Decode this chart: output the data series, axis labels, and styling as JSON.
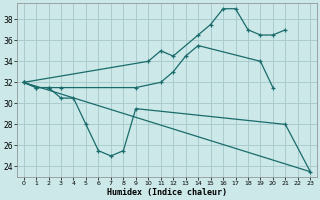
{
  "xlabel": "Humidex (Indice chaleur)",
  "bg_color": "#cce8e8",
  "grid_color": "#aacccc",
  "line_color": "#1a6b6b",
  "xlim": [
    -0.5,
    23.5
  ],
  "ylim": [
    23.0,
    39.5
  ],
  "yticks": [
    24,
    26,
    28,
    30,
    32,
    34,
    36,
    38
  ],
  "xticks": [
    0,
    1,
    2,
    3,
    4,
    5,
    6,
    7,
    8,
    9,
    10,
    11,
    12,
    13,
    14,
    15,
    16,
    17,
    18,
    19,
    20,
    21,
    22,
    23
  ],
  "series1_x": [
    0,
    1,
    2,
    3,
    4,
    5,
    6,
    7,
    8,
    9,
    21,
    23
  ],
  "series1_y": [
    32,
    31.5,
    31.5,
    30.5,
    30.5,
    28,
    25.5,
    25,
    25.5,
    29.5,
    28,
    23.5
  ],
  "series2_x": [
    0,
    1,
    2,
    3,
    9,
    11,
    12,
    13,
    14,
    19,
    20
  ],
  "series2_y": [
    32,
    31.5,
    31.5,
    31.5,
    31.5,
    32,
    33,
    34.5,
    35.5,
    34,
    31.5
  ],
  "series3_x": [
    0,
    10,
    11,
    12,
    14,
    15,
    16,
    17,
    18,
    19,
    20,
    21
  ],
  "series3_y": [
    32,
    34,
    35,
    34.5,
    36.5,
    37.5,
    39,
    39,
    37,
    36.5,
    36.5,
    37
  ],
  "series4_x": [
    0,
    23
  ],
  "series4_y": [
    32,
    23.5
  ]
}
